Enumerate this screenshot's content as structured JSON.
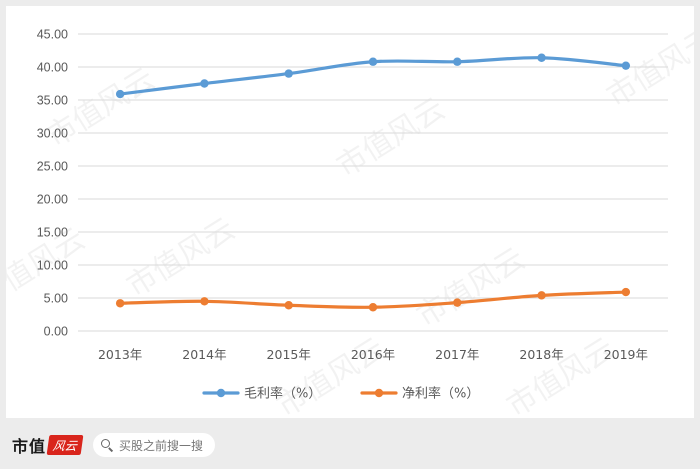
{
  "chart_data": {
    "type": "line",
    "title": "",
    "xlabel": "",
    "ylabel": "",
    "categories": [
      "2013年",
      "2014年",
      "2015年",
      "2016年",
      "2017年",
      "2018年",
      "2019年"
    ],
    "ylim": [
      0,
      45
    ],
    "yticks": [
      "0.00",
      "5.00",
      "10.00",
      "15.00",
      "20.00",
      "25.00",
      "30.00",
      "35.00",
      "40.00",
      "45.00"
    ],
    "grid": true,
    "legend_position": "bottom",
    "series": [
      {
        "name": "毛利率（%）",
        "color": "#5b9bd5",
        "values": [
          35.9,
          37.5,
          39.0,
          40.8,
          40.8,
          41.4,
          40.2
        ]
      },
      {
        "name": "净利率（%）",
        "color": "#ed7d31",
        "values": [
          4.2,
          4.5,
          3.9,
          3.6,
          4.3,
          5.4,
          5.9
        ]
      }
    ]
  },
  "watermark": "市值风云",
  "footer": {
    "brand_text": "市值",
    "search_placeholder": "买股之前搜一搜"
  }
}
